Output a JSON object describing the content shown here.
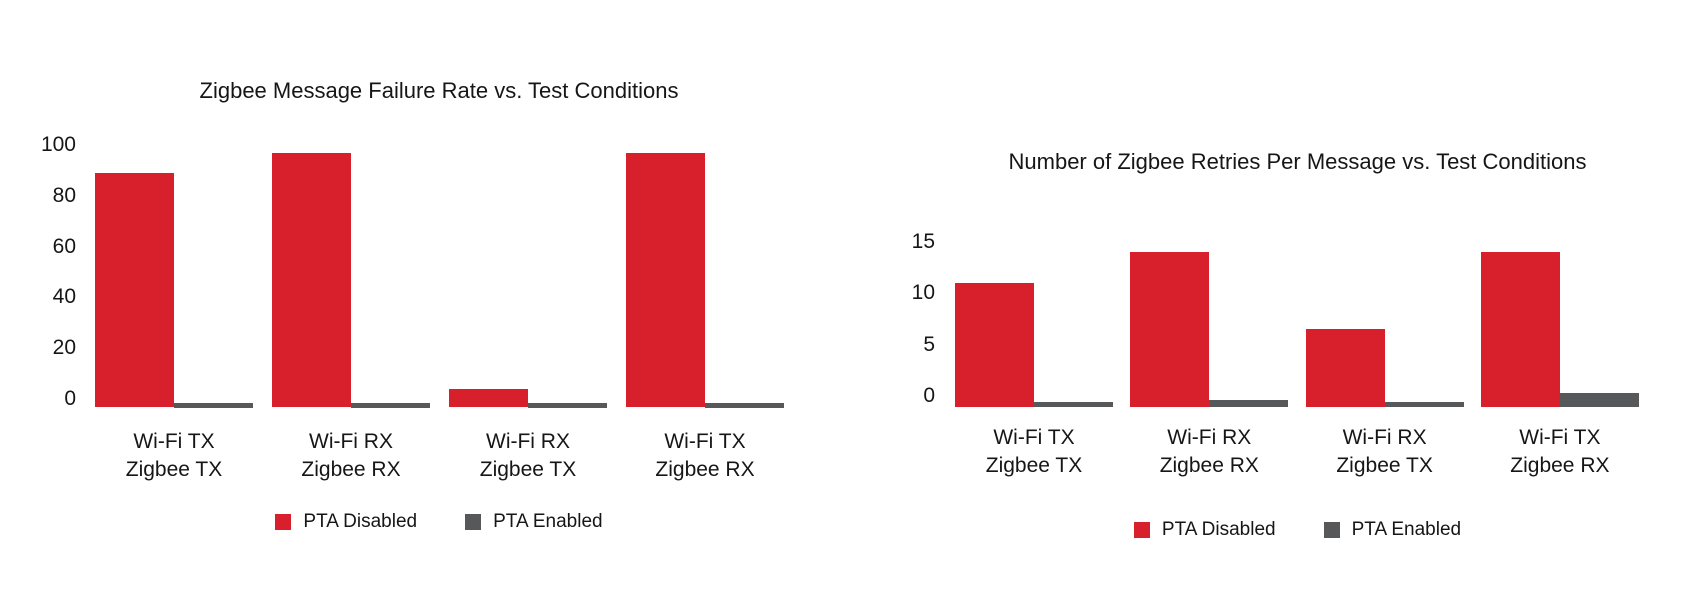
{
  "page": {
    "background_color": "#ffffff",
    "text_color": "#161616"
  },
  "chart_data": [
    {
      "type": "bar",
      "title": "Zigbee Message Failure Rate vs. Test Conditions",
      "categories": [
        [
          "Wi-Fi TX",
          "Zigbee TX"
        ],
        [
          "Wi-Fi RX",
          "Zigbee RX"
        ],
        [
          "Wi-Fi RX",
          "Zigbee TX"
        ],
        [
          "Wi-Fi TX",
          "Zigbee RX"
        ]
      ],
      "series": [
        {
          "name": "PTA Disabled",
          "color": "#d7202b",
          "values": [
            89,
            97,
            4,
            97
          ]
        },
        {
          "name": "PTA Enabled",
          "color": "#57585a",
          "values": [
            0,
            0,
            0,
            0
          ]
        }
      ],
      "xlabel": "",
      "ylabel": "",
      "yticks": [
        0,
        20,
        40,
        60,
        80,
        100
      ],
      "ylim": [
        0,
        100
      ],
      "grid": false,
      "legend_position": "bottom"
    },
    {
      "type": "bar",
      "title": "Number of Zigbee Retries Per Message vs. Test Conditions",
      "categories": [
        [
          "Wi-Fi TX",
          "Zigbee TX"
        ],
        [
          "Wi-Fi RX",
          "Zigbee RX"
        ],
        [
          "Wi-Fi RX",
          "Zigbee TX"
        ],
        [
          "Wi-Fi TX",
          "Zigbee RX"
        ]
      ],
      "series": [
        {
          "name": "PTA Disabled",
          "color": "#d7202b",
          "values": [
            11,
            14,
            6.5,
            14
          ]
        },
        {
          "name": "PTA Enabled",
          "color": "#57585a",
          "values": [
            0.1,
            0.3,
            0.1,
            0.7
          ]
        }
      ],
      "xlabel": "",
      "ylabel": "",
      "yticks": [
        0,
        5,
        10,
        15
      ],
      "ylim": [
        0,
        15
      ],
      "grid": false,
      "legend_position": "bottom"
    }
  ]
}
